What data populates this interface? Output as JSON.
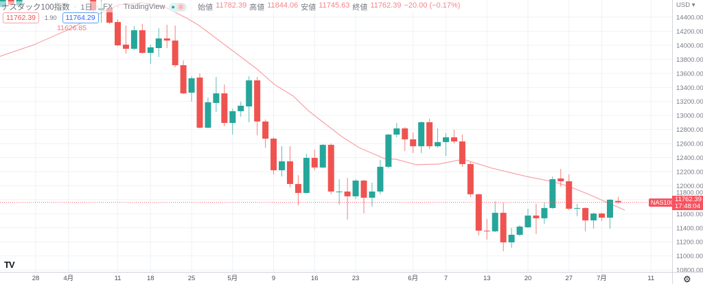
{
  "header": {
    "symbol": "ナスダック100指数",
    "interval": "1日",
    "exchange": "FX",
    "source": "TradingView",
    "open_label": "始値",
    "open": "11782.39",
    "high_label": "高値",
    "high": "11844.06",
    "low_label": "安値",
    "low": "11745.63",
    "close_label": "終値",
    "close": "11762.39",
    "change": "−20.00 (−0.17%)",
    "bid": "11762.39",
    "spread": "1.90",
    "ask": "11764.29",
    "ma_value": "11626.85",
    "badge_eq": "="
  },
  "axis": {
    "currency": "USD ▾",
    "price_tag_symbol": "NAS100",
    "price_tag_value": "11762.39",
    "price_tag_time": "17:48:04"
  },
  "colors": {
    "up": "#26a69a",
    "down": "#ef5350",
    "ma": "#f7a1a7",
    "grid": "#eef2f6"
  },
  "chart_data": {
    "type": "candlestick",
    "title": "ナスダック100指数 · 1日 · FX",
    "ylim": [
      10700,
      14644
    ],
    "yticks": [
      14400,
      14200,
      14000,
      13800,
      13600,
      13400,
      13200,
      13000,
      12800,
      12600,
      12400,
      12200,
      12000,
      11800,
      11600,
      11400,
      11200,
      11000,
      10800
    ],
    "ytick_format": "0.00",
    "xticks": [
      {
        "label": "28",
        "index": 0
      },
      {
        "label": "4月",
        "index": 4
      },
      {
        "label": "11",
        "index": 10
      },
      {
        "label": "18",
        "index": 14
      },
      {
        "label": "25",
        "index": 19
      },
      {
        "label": "5月",
        "index": 24
      },
      {
        "label": "9",
        "index": 29
      },
      {
        "label": "16",
        "index": 34
      },
      {
        "label": "23",
        "index": 39
      },
      {
        "label": "6月",
        "index": 46
      },
      {
        "label": "7",
        "index": 50
      },
      {
        "label": "13",
        "index": 55
      },
      {
        "label": "20",
        "index": 60
      },
      {
        "label": "27",
        "index": 65
      },
      {
        "label": "7月",
        "index": 69
      },
      {
        "label": "11",
        "index": 75
      }
    ],
    "last_price": 11762.39,
    "candles_start_index": -4,
    "candles_ohlc": [
      [
        14546,
        14742,
        14527,
        14693
      ],
      [
        14742,
        14791,
        14546,
        14576
      ],
      [
        14566,
        14791,
        14546,
        14742
      ],
      [
        14740,
        14880,
        14700,
        14850
      ],
      [
        14850,
        14920,
        14760,
        14900
      ],
      [
        14900,
        15050,
        14850,
        15020
      ],
      [
        15020,
        15100,
        14950,
        15050
      ],
      [
        15050,
        15160,
        15000,
        15100
      ],
      [
        15100,
        15150,
        14980,
        15040
      ],
      [
        15040,
        15080,
        14880,
        14900
      ],
      [
        14900,
        14960,
        14690,
        14700
      ],
      [
        14693,
        14742,
        14400,
        14497
      ],
      [
        14497,
        14644,
        14321,
        14527
      ],
      [
        14527,
        14595,
        14302,
        14321
      ],
      [
        14331,
        14370,
        13989,
        13999
      ],
      [
        14009,
        14282,
        13882,
        13950
      ],
      [
        13950,
        14273,
        13930,
        14214
      ],
      [
        14214,
        14302,
        13882,
        13891
      ],
      [
        13891,
        14009,
        13735,
        13970
      ],
      [
        13960,
        14243,
        13833,
        14097
      ],
      [
        14097,
        14292,
        13960,
        14067
      ],
      [
        14067,
        14282,
        13686,
        13716
      ],
      [
        13716,
        13784,
        13305,
        13315
      ],
      [
        13325,
        13559,
        13197,
        13530
      ],
      [
        13540,
        13598,
        12816,
        12826
      ],
      [
        12826,
        13256,
        12816,
        13188
      ],
      [
        13178,
        13549,
        13051,
        13315
      ],
      [
        13315,
        13442,
        12845,
        12894
      ],
      [
        12894,
        13100,
        12728,
        13061
      ],
      [
        13061,
        13197,
        12982,
        13139
      ],
      [
        13129,
        13559,
        12904,
        13500
      ],
      [
        13500,
        13549,
        12718,
        12914
      ],
      [
        12914,
        12943,
        12542,
        12670
      ],
      [
        12670,
        12689,
        12161,
        12220
      ],
      [
        12220,
        12562,
        12132,
        12347
      ],
      [
        12347,
        12562,
        11976,
        12024
      ],
      [
        12024,
        12151,
        11721,
        11897
      ],
      [
        11897,
        12454,
        11888,
        12396
      ],
      [
        12396,
        12513,
        12220,
        12259
      ],
      [
        12259,
        12591,
        12249,
        12582
      ],
      [
        12582,
        12601,
        11878,
        11917
      ],
      [
        11907,
        12093,
        11731,
        11917
      ],
      [
        11917,
        12112,
        11516,
        11849
      ],
      [
        11849,
        12093,
        11809,
        12073
      ],
      [
        12073,
        12083,
        11604,
        11829
      ],
      [
        11829,
        12044,
        11702,
        11917
      ],
      [
        11917,
        12367,
        11878,
        12269
      ],
      [
        12269,
        12738,
        12249,
        12728
      ],
      [
        12728,
        12894,
        12689,
        12816
      ],
      [
        12816,
        12836,
        12493,
        12660
      ],
      [
        12660,
        12757,
        12464,
        12562
      ],
      [
        12562,
        12914,
        12464,
        12904
      ],
      [
        12904,
        12953,
        12523,
        12562
      ],
      [
        12562,
        12816,
        12542,
        12621
      ],
      [
        12621,
        12748,
        12425,
        12689
      ],
      [
        12689,
        12797,
        12601,
        12630
      ],
      [
        12630,
        12728,
        12269,
        12308
      ],
      [
        12308,
        12337,
        11839,
        11878
      ],
      [
        11878,
        11888,
        11291,
        11360
      ],
      [
        11360,
        11526,
        11233,
        11350
      ],
      [
        11350,
        11780,
        11340,
        11614
      ],
      [
        11614,
        11760,
        11066,
        11193
      ],
      [
        11193,
        11399,
        11115,
        11301
      ],
      [
        11301,
        11438,
        11281,
        11418
      ],
      [
        11408,
        11672,
        11399,
        11575
      ],
      [
        11575,
        11741,
        11311,
        11536
      ],
      [
        11536,
        11760,
        11457,
        11682
      ],
      [
        11682,
        12132,
        11672,
        12093
      ],
      [
        12103,
        12239,
        11985,
        12063
      ],
      [
        12063,
        12161,
        11653,
        11672
      ],
      [
        11672,
        11741,
        11565,
        11682
      ],
      [
        11682,
        11692,
        11350,
        11506
      ],
      [
        11506,
        11614,
        11389,
        11604
      ],
      [
        11604,
        11614,
        11497,
        11545
      ],
      [
        11545,
        11809,
        11389,
        11800
      ],
      [
        11782.39,
        11844.06,
        11745.63,
        11762.39
      ]
    ],
    "moving_average": [
      [
        -4.35,
        13843
      ],
      [
        -0.17,
        14009
      ],
      [
        4.0,
        14224
      ],
      [
        7.4,
        14429
      ],
      [
        10.1,
        14576
      ],
      [
        13.0,
        14605
      ],
      [
        15.7,
        14547
      ],
      [
        18.5,
        14380
      ],
      [
        19.9,
        14283
      ],
      [
        26.9,
        13667
      ],
      [
        29.1,
        13442
      ],
      [
        31.4,
        13276
      ],
      [
        33.3,
        13061
      ],
      [
        37.2,
        12709
      ],
      [
        39.4,
        12543
      ],
      [
        42.5,
        12386
      ],
      [
        43.9,
        12377
      ],
      [
        46.4,
        12298
      ],
      [
        49.2,
        12308
      ],
      [
        52.1,
        12377
      ],
      [
        55.6,
        12250
      ],
      [
        59.8,
        12132
      ],
      [
        63.2,
        12054
      ],
      [
        65.1,
        11986
      ],
      [
        67.4,
        11878
      ],
      [
        69.3,
        11780
      ],
      [
        71.8,
        11653
      ]
    ],
    "grid": true
  }
}
